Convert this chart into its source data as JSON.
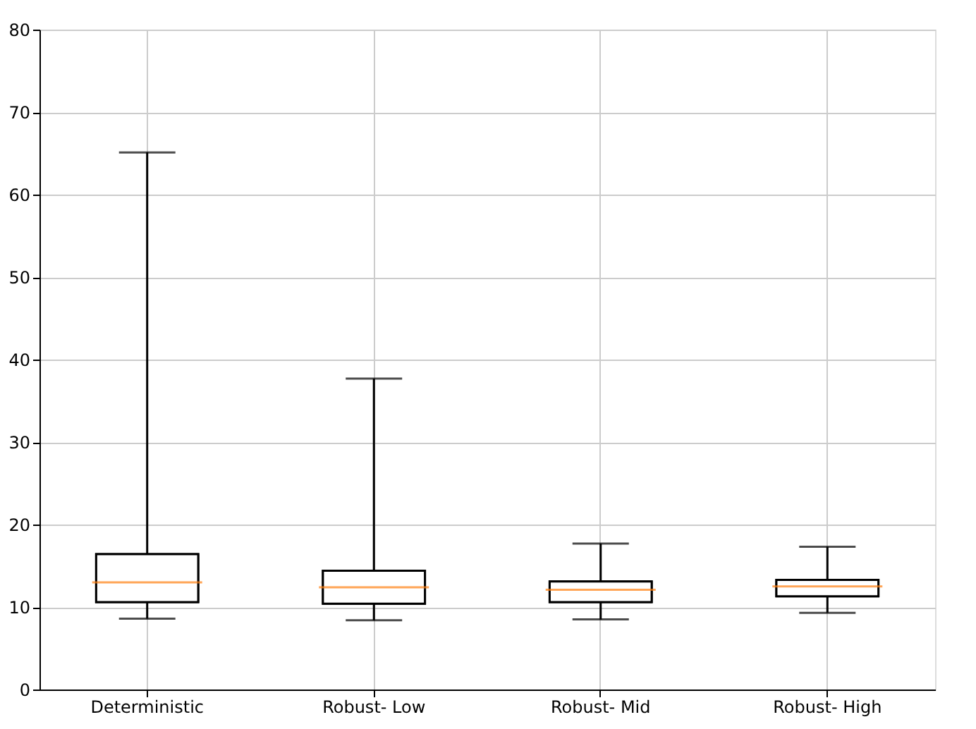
{
  "chart_data": {
    "type": "box",
    "categories": [
      "Deterministic",
      "Robust- Low",
      "Robust- Mid",
      "Robust- High"
    ],
    "boxes": [
      {
        "low": 8.6,
        "q1": 10.6,
        "median": 13.0,
        "q3": 16.4,
        "high": 65.1
      },
      {
        "low": 8.4,
        "q1": 10.4,
        "median": 12.4,
        "q3": 14.4,
        "high": 37.7
      },
      {
        "low": 8.5,
        "q1": 10.6,
        "median": 12.1,
        "q3": 13.1,
        "high": 17.7
      },
      {
        "low": 9.3,
        "q1": 11.3,
        "median": 12.5,
        "q3": 13.3,
        "high": 17.3
      }
    ],
    "ylim": [
      0,
      80
    ],
    "yticks": [
      0,
      10,
      20,
      30,
      40,
      50,
      60,
      70,
      80
    ],
    "grid": true
  }
}
